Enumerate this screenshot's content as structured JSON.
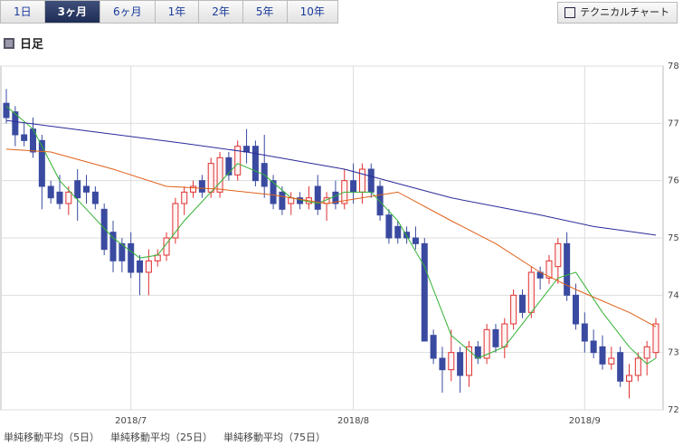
{
  "tabs": {
    "items": [
      "1日",
      "3ヶ月",
      "6ヶ月",
      "1年",
      "2年",
      "5年",
      "10年"
    ],
    "active": 1
  },
  "button": "テクニカルチャート",
  "section_title": "日足",
  "chart_data": {
    "type": "candlestick",
    "categories": [
      null,
      null,
      null,
      null,
      null,
      null,
      null,
      null,
      null,
      null,
      null,
      null,
      null,
      null,
      "2018/7",
      null,
      null,
      null,
      null,
      null,
      null,
      null,
      null,
      null,
      null,
      null,
      null,
      null,
      null,
      null,
      null,
      null,
      null,
      null,
      null,
      null,
      null,
      null,
      null,
      "2018/8",
      null,
      null,
      null,
      null,
      null,
      null,
      null,
      null,
      null,
      null,
      null,
      null,
      null,
      null,
      null,
      null,
      null,
      null,
      null,
      null,
      null,
      null,
      null,
      null,
      null,
      "2018/9",
      null,
      null,
      null,
      null,
      null,
      null,
      null,
      null
    ],
    "open": [
      77.35,
      77.2,
      76.8,
      76.9,
      76.7,
      75.9,
      75.8,
      75.6,
      76.0,
      75.9,
      75.8,
      75.5,
      75.1,
      74.9,
      74.9,
      74.6,
      74.4,
      74.6,
      74.7,
      75.0,
      75.6,
      75.8,
      76.0,
      75.8,
      75.8,
      76.4,
      76.1,
      76.6,
      76.6,
      76.3,
      76.0,
      75.8,
      75.6,
      75.7,
      75.6,
      75.9,
      75.6,
      75.8,
      75.6,
      76.0,
      75.8,
      76.2,
      75.9,
      75.4,
      75.2,
      75.1,
      75.0,
      74.9,
      73.3,
      72.9,
      72.7,
      73.0,
      72.6,
      73.1,
      72.9,
      73.4,
      73.1,
      73.5,
      74.0,
      73.7,
      74.4,
      74.3,
      74.5,
      74.9,
      74.0,
      73.5,
      73.2,
      73.1,
      72.8,
      73.0,
      72.5,
      72.6,
      72.9,
      73.0
    ],
    "high": [
      77.6,
      77.3,
      77.0,
      77.1,
      76.8,
      76.0,
      76.1,
      75.9,
      76.2,
      76.1,
      75.9,
      75.6,
      75.3,
      75.0,
      75.1,
      74.7,
      74.8,
      74.8,
      75.1,
      75.7,
      75.9,
      76.0,
      76.1,
      76.4,
      76.5,
      76.5,
      76.7,
      76.9,
      76.7,
      76.8,
      76.1,
      75.9,
      75.8,
      75.8,
      75.9,
      76.1,
      75.8,
      76.0,
      76.2,
      76.3,
      76.3,
      76.3,
      76.0,
      75.5,
      75.3,
      75.2,
      75.2,
      75.0,
      73.4,
      73.1,
      73.4,
      73.1,
      73.2,
      73.2,
      73.5,
      73.5,
      73.6,
      74.1,
      74.1,
      74.5,
      74.5,
      74.7,
      75.0,
      75.1,
      74.2,
      73.7,
      73.4,
      73.3,
      73.1,
      73.1,
      72.8,
      73.0,
      73.2,
      73.6
    ],
    "low": [
      77.0,
      76.6,
      76.6,
      76.4,
      75.5,
      75.6,
      75.5,
      75.4,
      75.3,
      75.6,
      75.5,
      74.7,
      74.4,
      74.4,
      74.3,
      74.0,
      74.0,
      74.5,
      74.6,
      74.9,
      75.4,
      75.7,
      75.7,
      75.7,
      75.7,
      76.0,
      76.0,
      76.3,
      75.9,
      75.7,
      75.5,
      75.4,
      75.4,
      75.5,
      75.5,
      75.4,
      75.3,
      75.5,
      75.5,
      75.6,
      75.6,
      75.7,
      75.3,
      74.9,
      74.9,
      74.9,
      74.8,
      73.2,
      72.8,
      72.3,
      72.5,
      72.3,
      72.4,
      72.8,
      72.8,
      73.0,
      72.9,
      73.4,
      73.6,
      73.6,
      74.1,
      74.2,
      74.2,
      73.9,
      73.4,
      73.0,
      72.9,
      72.7,
      72.7,
      72.4,
      72.2,
      72.5,
      72.6,
      72.9
    ],
    "close": [
      77.1,
      76.8,
      76.7,
      76.5,
      75.9,
      75.7,
      75.6,
      75.8,
      75.7,
      75.8,
      75.6,
      74.8,
      74.6,
      74.6,
      74.4,
      74.4,
      74.6,
      74.7,
      75.0,
      75.6,
      75.8,
      75.9,
      75.8,
      76.3,
      76.4,
      76.1,
      76.6,
      76.5,
      76.0,
      75.9,
      75.6,
      75.5,
      75.7,
      75.6,
      75.7,
      75.5,
      75.7,
      75.6,
      76.0,
      75.8,
      76.2,
      75.8,
      75.4,
      75.0,
      75.0,
      75.0,
      74.9,
      73.2,
      72.9,
      72.7,
      73.0,
      72.6,
      73.1,
      72.9,
      73.4,
      73.1,
      73.5,
      74.0,
      73.7,
      74.4,
      74.3,
      74.6,
      74.9,
      74.0,
      73.5,
      73.2,
      73.0,
      72.8,
      72.9,
      72.5,
      72.6,
      72.9,
      73.1,
      73.5
    ],
    "up_color": "#e03030",
    "down_color": "#3a4aa0",
    "series": [
      {
        "name": "単純移動平均（5日）",
        "color": "#33b233",
        "x": [
          0,
          3,
          6,
          9,
          12,
          15,
          17,
          20,
          23,
          26,
          29,
          32,
          35,
          38,
          41,
          44,
          47,
          50,
          53,
          56,
          59,
          62,
          64,
          67,
          70,
          72,
          73
        ],
        "values": [
          77.3,
          76.9,
          76.0,
          75.5,
          75.0,
          74.65,
          74.7,
          75.3,
          75.8,
          76.3,
          76.1,
          75.7,
          75.6,
          75.8,
          75.8,
          75.3,
          74.5,
          73.3,
          72.9,
          73.1,
          73.7,
          74.3,
          74.4,
          73.7,
          73.1,
          72.8,
          72.9
        ]
      },
      {
        "name": "単純移動平均（25日）",
        "color": "#e0601a",
        "x": [
          0,
          5,
          12,
          18,
          24,
          30,
          36,
          44,
          50,
          55,
          60,
          64,
          70,
          73
        ],
        "values": [
          76.55,
          76.5,
          76.2,
          75.9,
          75.85,
          75.75,
          75.6,
          75.8,
          75.3,
          74.9,
          74.4,
          74.1,
          73.7,
          73.45
        ]
      },
      {
        "name": "単純移動平均（75日）",
        "color": "#2a2a9a",
        "x": [
          0,
          10,
          20,
          27,
          38,
          44,
          50,
          60,
          66,
          73
        ],
        "values": [
          77.05,
          76.85,
          76.65,
          76.5,
          76.2,
          75.95,
          75.7,
          75.4,
          75.2,
          75.05
        ]
      }
    ],
    "ylim": [
      72,
      78
    ],
    "yticks": [
      72,
      73,
      74,
      75,
      76,
      77,
      78
    ],
    "grid": true
  }
}
